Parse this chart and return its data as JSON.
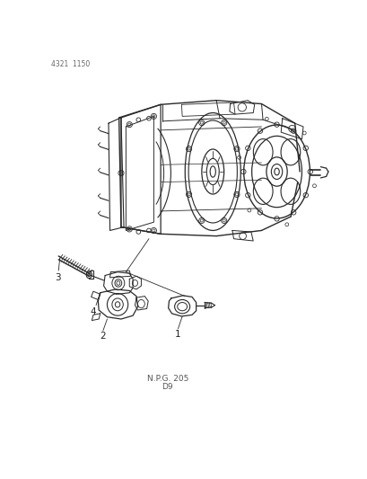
{
  "background_color": "#ffffff",
  "top_left_text": "4321  1150",
  "bottom_text_line1": "N.P.G. 205",
  "bottom_text_line2": "D9",
  "label_1": "1",
  "label_2": "2",
  "label_3": "3",
  "label_4": "4",
  "line_color": "#2a2a2a",
  "text_color": "#333333",
  "fig_width": 4.1,
  "fig_height": 5.33,
  "dpi": 100
}
